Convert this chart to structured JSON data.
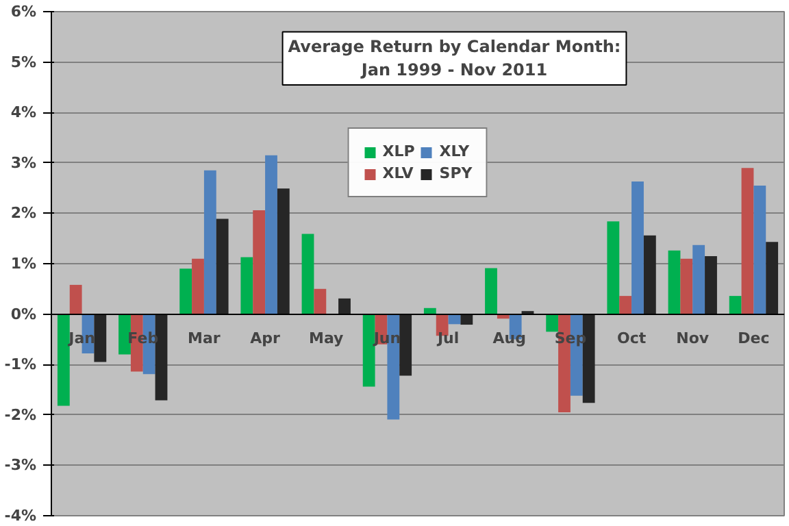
{
  "chart_data": {
    "type": "bar",
    "title": "Average Return by Calendar Month:",
    "subtitle": "Jan 1999 - Nov 2011",
    "categories": [
      "Jan",
      "Feb",
      "Mar",
      "Apr",
      "May",
      "Jun",
      "Jul",
      "Aug",
      "Sep",
      "Oct",
      "Nov",
      "Dec"
    ],
    "series": [
      {
        "name": "XLP",
        "color": "#00b050",
        "values": [
          -1.82,
          -0.8,
          0.9,
          1.13,
          1.59,
          -1.44,
          0.12,
          0.91,
          -0.35,
          1.84,
          1.26,
          0.36
        ]
      },
      {
        "name": "XLV",
        "color": "#c0504d",
        "values": [
          0.58,
          -1.14,
          1.1,
          2.06,
          0.5,
          -0.6,
          -0.43,
          -0.09,
          -1.95,
          0.36,
          1.1,
          2.9
        ]
      },
      {
        "name": "XLY",
        "color": "#4f81bd",
        "values": [
          -0.78,
          -1.19,
          2.85,
          3.15,
          0,
          -2.09,
          -0.2,
          -0.5,
          -1.62,
          2.63,
          1.37,
          2.55
        ]
      },
      {
        "name": "SPY",
        "color": "#262626",
        "values": [
          -0.95,
          -1.71,
          1.89,
          2.49,
          0.31,
          -1.22,
          -0.21,
          0.06,
          -1.76,
          1.56,
          1.15,
          1.43
        ]
      }
    ],
    "ylim": [
      -4,
      6
    ],
    "yticks": [
      {
        "value": -4,
        "label": "-4%"
      },
      {
        "value": -3,
        "label": "-3%"
      },
      {
        "value": -2,
        "label": "-2%"
      },
      {
        "value": -1,
        "label": "-1%"
      },
      {
        "value": 0,
        "label": "0%"
      },
      {
        "value": 1,
        "label": "1%"
      },
      {
        "value": 2,
        "label": "2%"
      },
      {
        "value": 3,
        "label": "3%"
      },
      {
        "value": 4,
        "label": "4%"
      },
      {
        "value": 5,
        "label": "5%"
      },
      {
        "value": 6,
        "label": "6%"
      }
    ],
    "grid": "y",
    "legend": "top"
  }
}
